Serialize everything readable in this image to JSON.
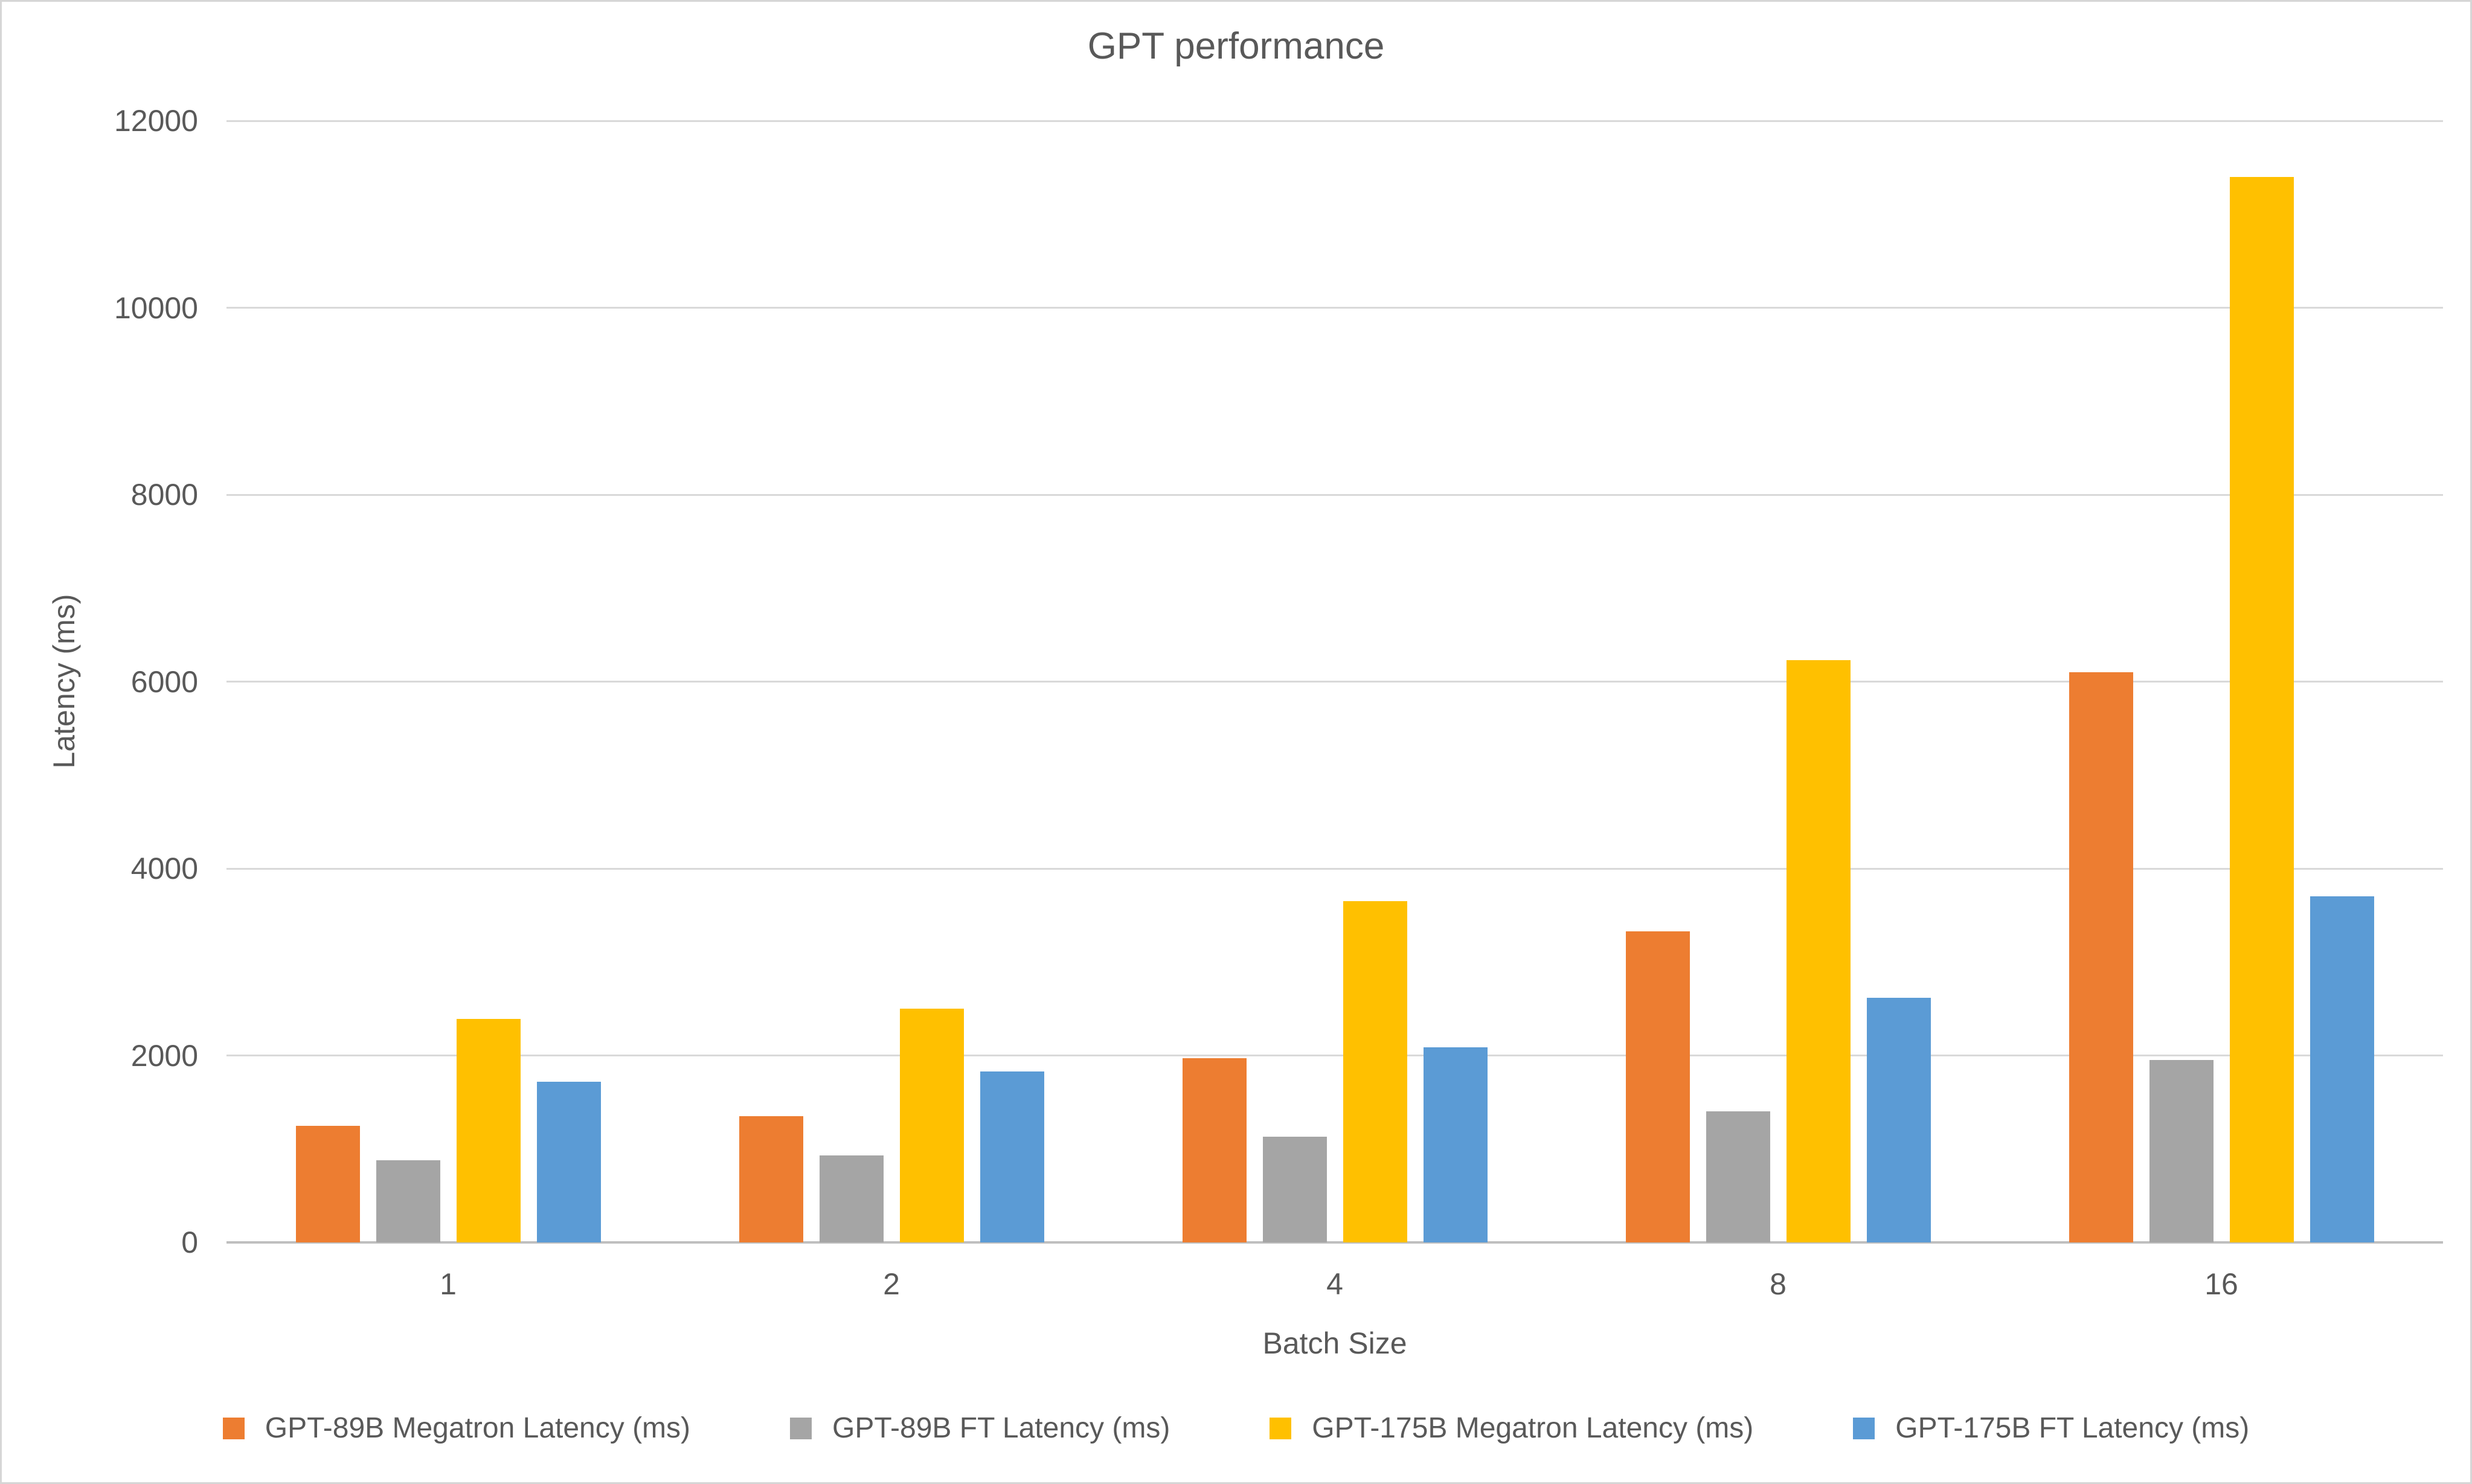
{
  "title": "GPT performance",
  "colors": {
    "background": "#FFFFFF",
    "frame_border": "#D6D6D6",
    "text": "#595959",
    "gridline": "#D9D9D9",
    "axis_line": "#BFBFBF"
  },
  "chart_data": {
    "type": "bar",
    "title": "GPT performance",
    "xlabel": "Batch Size",
    "ylabel": "Latency (ms)",
    "categories": [
      "1",
      "2",
      "4",
      "8",
      "16"
    ],
    "series": [
      {
        "name": "GPT-89B Megatron Latency (ms)",
        "color": "#ED7D31",
        "values": [
          1250,
          1350,
          1970,
          3330,
          6100
        ]
      },
      {
        "name": "GPT-89B FT Latency (ms)",
        "color": "#A5A5A5",
        "values": [
          880,
          930,
          1130,
          1400,
          1950
        ]
      },
      {
        "name": "GPT-175B Megatron Latency (ms)",
        "color": "#FFC000",
        "values": [
          2390,
          2500,
          3650,
          6230,
          11400
        ]
      },
      {
        "name": "GPT-175B FT Latency (ms)",
        "color": "#5B9BD5",
        "values": [
          1720,
          1830,
          2090,
          2620,
          3700
        ]
      }
    ],
    "ylim": [
      0,
      12000
    ],
    "ytick_step": 2000,
    "y_tick_labels": [
      "0",
      "2000",
      "4000",
      "6000",
      "8000",
      "10000",
      "12000"
    ],
    "grid": true,
    "legend_position": "bottom"
  }
}
